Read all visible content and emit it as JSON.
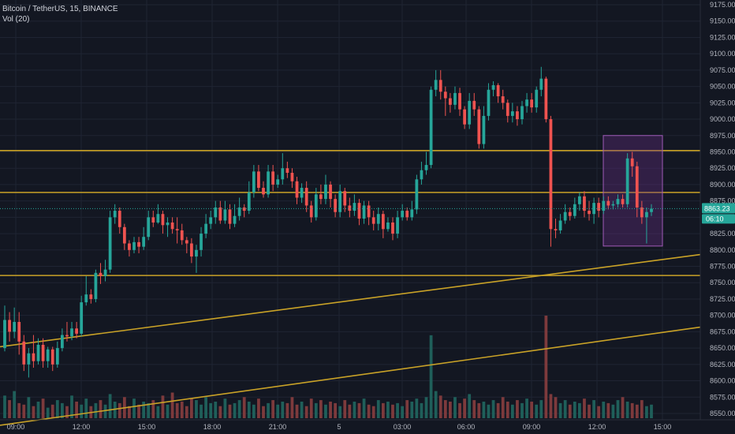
{
  "header": {
    "symbol_line": "Bitcoin / TetherUS, 15, BINANCE",
    "volume_line": "Vol (20)"
  },
  "chart_data": {
    "type": "candlestick",
    "price_axis": {
      "ticks": [
        "9175.00",
        "9150.00",
        "9125.00",
        "9100.00",
        "9075.00",
        "9050.00",
        "9025.00",
        "9000.00",
        "8975.00",
        "8950.00",
        "8925.00",
        "8900.00",
        "8875.00",
        "8850.00",
        "8825.00",
        "8800.00",
        "8775.00",
        "8750.00",
        "8725.00",
        "8700.00",
        "8675.00",
        "8650.00",
        "8625.00",
        "8600.00",
        "8575.00",
        "8550.00"
      ],
      "last_price": "8863.23",
      "countdown": "06:10"
    },
    "time_axis": {
      "ticks": [
        "09:00",
        "12:00",
        "15:00",
        "18:00",
        "21:00",
        "5",
        "03:00",
        "06:00",
        "09:00",
        "12:00",
        "15:00"
      ]
    },
    "horizontal_levels": [
      8952,
      8888,
      8761
    ],
    "trendlines": [
      {
        "from": [
          "09:00",
          8652
        ],
        "to": [
          "15:30",
          8793
        ]
      },
      {
        "from": [
          "09:00",
          8532
        ],
        "to": [
          "15:30",
          8682
        ]
      }
    ],
    "highlight_box": {
      "from_time": "13:00",
      "to_time": "15:15",
      "price_top": 8975,
      "price_bottom": 8806
    },
    "candles": [
      [
        8650,
        8693,
        8715,
        8645
      ],
      [
        8693,
        8675,
        8705,
        8660
      ],
      [
        8675,
        8690,
        8712,
        8665
      ],
      [
        8690,
        8660,
        8705,
        8640
      ],
      [
        8660,
        8625,
        8670,
        8615
      ],
      [
        8625,
        8642,
        8650,
        8605
      ],
      [
        8642,
        8630,
        8670,
        8620
      ],
      [
        8630,
        8655,
        8665,
        8625
      ],
      [
        8655,
        8630,
        8665,
        8620
      ],
      [
        8630,
        8648,
        8652,
        8620
      ],
      [
        8648,
        8625,
        8652,
        8615
      ],
      [
        8625,
        8650,
        8660,
        8620
      ],
      [
        8650,
        8670,
        8680,
        8645
      ],
      [
        8670,
        8668,
        8690,
        8660
      ],
      [
        8668,
        8680,
        8690,
        8662
      ],
      [
        8680,
        8672,
        8690,
        8665
      ],
      [
        8672,
        8720,
        8730,
        8668
      ],
      [
        8720,
        8732,
        8760,
        8715
      ],
      [
        8732,
        8725,
        8740,
        8718
      ],
      [
        8725,
        8765,
        8770,
        8720
      ],
      [
        8765,
        8760,
        8780,
        8748
      ],
      [
        8760,
        8770,
        8785,
        8752
      ],
      [
        8770,
        8850,
        8860,
        8765
      ],
      [
        8850,
        8860,
        8870,
        8840
      ],
      [
        8860,
        8835,
        8865,
        8825
      ],
      [
        8835,
        8810,
        8840,
        8800
      ],
      [
        8810,
        8800,
        8815,
        8790
      ],
      [
        8800,
        8812,
        8820,
        8795
      ],
      [
        8812,
        8805,
        8820,
        8795
      ],
      [
        8805,
        8820,
        8835,
        8800
      ],
      [
        8820,
        8850,
        8860,
        8815
      ],
      [
        8850,
        8842,
        8860,
        8835
      ],
      [
        8842,
        8855,
        8870,
        8840
      ],
      [
        8855,
        8838,
        8860,
        8825
      ],
      [
        8838,
        8842,
        8850,
        8820
      ],
      [
        8842,
        8832,
        8850,
        8825
      ],
      [
        8832,
        8830,
        8850,
        8810
      ],
      [
        8830,
        8815,
        8840,
        8808
      ],
      [
        8815,
        8810,
        8820,
        8795
      ],
      [
        8810,
        8790,
        8818,
        8780
      ],
      [
        8790,
        8800,
        8808,
        8765
      ],
      [
        8800,
        8825,
        8835,
        8790
      ],
      [
        8825,
        8840,
        8855,
        8818
      ],
      [
        8840,
        8850,
        8860,
        8832
      ],
      [
        8850,
        8865,
        8875,
        8840
      ],
      [
        8865,
        8845,
        8875,
        8840
      ],
      [
        8845,
        8862,
        8875,
        8840
      ],
      [
        8862,
        8840,
        8870,
        8832
      ],
      [
        8840,
        8852,
        8870,
        8835
      ],
      [
        8852,
        8865,
        8880,
        8845
      ],
      [
        8865,
        8860,
        8870,
        8850
      ],
      [
        8860,
        8888,
        8905,
        8855
      ],
      [
        8888,
        8920,
        8930,
        8880
      ],
      [
        8920,
        8895,
        8930,
        8890
      ],
      [
        8895,
        8885,
        8905,
        8880
      ],
      [
        8885,
        8920,
        8930,
        8880
      ],
      [
        8920,
        8900,
        8930,
        8890
      ],
      [
        8900,
        8908,
        8915,
        8895
      ],
      [
        8908,
        8925,
        8948,
        8900
      ],
      [
        8925,
        8918,
        8935,
        8910
      ],
      [
        8918,
        8905,
        8925,
        8895
      ],
      [
        8905,
        8880,
        8912,
        8870
      ],
      [
        8880,
        8895,
        8902,
        8872
      ],
      [
        8895,
        8868,
        8905,
        8858
      ],
      [
        8868,
        8850,
        8875,
        8842
      ],
      [
        8850,
        8885,
        8895,
        8845
      ],
      [
        8885,
        8878,
        8900,
        8870
      ],
      [
        8878,
        8900,
        8915,
        8870
      ],
      [
        8900,
        8878,
        8905,
        8865
      ],
      [
        8878,
        8858,
        8885,
        8850
      ],
      [
        8858,
        8890,
        8900,
        8850
      ],
      [
        8890,
        8868,
        8895,
        8858
      ],
      [
        8868,
        8860,
        8880,
        8850
      ],
      [
        8860,
        8872,
        8885,
        8852
      ],
      [
        8872,
        8848,
        8878,
        8838
      ],
      [
        8848,
        8868,
        8875,
        8840
      ],
      [
        8868,
        8850,
        8875,
        8838
      ],
      [
        8850,
        8840,
        8860,
        8830
      ],
      [
        8840,
        8855,
        8865,
        8830
      ],
      [
        8855,
        8832,
        8860,
        8818
      ],
      [
        8832,
        8842,
        8850,
        8828
      ],
      [
        8842,
        8825,
        8850,
        8815
      ],
      [
        8825,
        8850,
        8860,
        8818
      ],
      [
        8850,
        8860,
        8870,
        8845
      ],
      [
        8860,
        8850,
        8865,
        8845
      ],
      [
        8850,
        8862,
        8875,
        8845
      ],
      [
        8862,
        8908,
        8915,
        8855
      ],
      [
        8908,
        8922,
        8935,
        8900
      ],
      [
        8922,
        8930,
        8950,
        8915
      ],
      [
        8930,
        9045,
        9050,
        8925
      ],
      [
        9045,
        9060,
        9075,
        9035
      ],
      [
        9060,
        9042,
        9075,
        9030
      ],
      [
        9042,
        9032,
        9050,
        9005
      ],
      [
        9032,
        9022,
        9040,
        9010
      ],
      [
        9022,
        9040,
        9050,
        9015
      ],
      [
        9040,
        9015,
        9048,
        9005
      ],
      [
        9015,
        8992,
        9020,
        8985
      ],
      [
        8992,
        9028,
        9040,
        8985
      ],
      [
        9028,
        9015,
        9040,
        9005
      ],
      [
        9015,
        8962,
        9020,
        8955
      ],
      [
        8962,
        9005,
        9020,
        8955
      ],
      [
        9005,
        9045,
        9055,
        8998
      ],
      [
        9045,
        9052,
        9058,
        9035
      ],
      [
        9052,
        9035,
        9055,
        9025
      ],
      [
        9035,
        9025,
        9045,
        9015
      ],
      [
        9025,
        9005,
        9030,
        8995
      ],
      [
        9005,
        9012,
        9025,
        8995
      ],
      [
        9012,
        9000,
        9020,
        8990
      ],
      [
        9000,
        9020,
        9028,
        8992
      ],
      [
        9020,
        9030,
        9040,
        9010
      ],
      [
        9030,
        9018,
        9040,
        9010
      ],
      [
        9018,
        9045,
        9050,
        9010
      ],
      [
        9045,
        9062,
        9080,
        9035
      ],
      [
        9062,
        9000,
        9065,
        8995
      ],
      [
        9000,
        8832,
        9005,
        8805
      ],
      [
        8832,
        8830,
        8848,
        8818
      ],
      [
        8830,
        8845,
        8855,
        8825
      ],
      [
        8845,
        8858,
        8870,
        8840
      ],
      [
        8858,
        8852,
        8865,
        8845
      ],
      [
        8852,
        8870,
        8880,
        8848
      ],
      [
        8870,
        8882,
        8888,
        8860
      ],
      [
        8882,
        8860,
        8890,
        8850
      ],
      [
        8860,
        8855,
        8875,
        8845
      ],
      [
        8855,
        8872,
        8880,
        8840
      ],
      [
        8872,
        8860,
        8880,
        8850
      ],
      [
        8860,
        8875,
        8882,
        8855
      ],
      [
        8875,
        8868,
        8882,
        8862
      ],
      [
        8868,
        8870,
        8875,
        8862
      ],
      [
        8870,
        8878,
        8885,
        8865
      ],
      [
        8878,
        8870,
        8885,
        8865
      ],
      [
        8870,
        8940,
        8948,
        8865
      ],
      [
        8940,
        8928,
        8950,
        8912
      ],
      [
        8928,
        8865,
        8935,
        8850
      ],
      [
        8865,
        8850,
        8875,
        8840
      ],
      [
        8850,
        8858,
        8865,
        8810
      ],
      [
        8858,
        8863,
        8870,
        8852
      ]
    ],
    "volumes": [
      15,
      12,
      18,
      10,
      9,
      14,
      8,
      11,
      13,
      7,
      9,
      12,
      10,
      8,
      15,
      11,
      9,
      13,
      8,
      10,
      12,
      9,
      16,
      11,
      10,
      14,
      8,
      13,
      9,
      11,
      10,
      12,
      8,
      15,
      9,
      17,
      10,
      11,
      8,
      13,
      12,
      9,
      14,
      10,
      11,
      8,
      13,
      9,
      10,
      12,
      14,
      11,
      9,
      13,
      8,
      10,
      12,
      9,
      11,
      10,
      14,
      9,
      11,
      8,
      13,
      10,
      12,
      9,
      11,
      10,
      8,
      12,
      9,
      11,
      10,
      13,
      9,
      8,
      12,
      10,
      11,
      9,
      10,
      8,
      12,
      11,
      13,
      10,
      14,
      55,
      18,
      15,
      12,
      11,
      14,
      10,
      13,
      16,
      12,
      10,
      11,
      9,
      12,
      10,
      14,
      11,
      9,
      12,
      10,
      13,
      11,
      9,
      12,
      68,
      16,
      14,
      10,
      12,
      9,
      11,
      10,
      13,
      9,
      12,
      8,
      11,
      10,
      9,
      12,
      14,
      11,
      10,
      9,
      12,
      8,
      9
    ]
  },
  "colors": {
    "background": "#131722",
    "grid": "#1f2433",
    "up": "#26a69a",
    "down": "#ef5350",
    "vol_up": "#1f5f5a",
    "vol_down": "#7d3a3c",
    "level": "#c9a227",
    "highlight_border": "#a05bb8",
    "highlight_fill": "#6a2f86",
    "axis_text": "#b2b5be",
    "price_tag": "#26a69a"
  }
}
